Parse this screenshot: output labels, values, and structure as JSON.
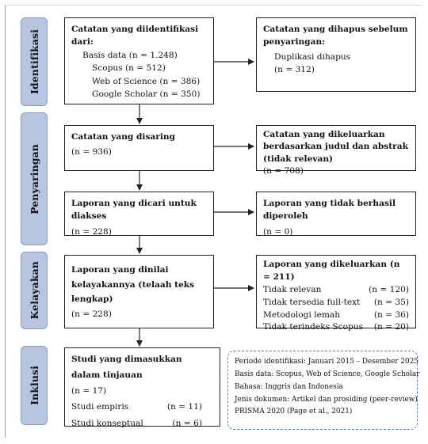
{
  "phases": {
    "identifikasi": "Identifikasi",
    "penyaringan": "Penyaringan",
    "kelayakan": "Kelayakan",
    "inklusi": "Inklusi"
  },
  "identified": {
    "title": "Catatan yang diidentifikasi dari:",
    "db_total": "Basis data (n = 1.248)",
    "scopus": "Scopus (n = 512)",
    "wos": "Web of Science (n = 386)",
    "gs": "Google Scholar (n = 350)"
  },
  "removed": {
    "title": "Catatan yang dihapus sebelum penyaringan:",
    "dup_label": "Duplikasi dihapus",
    "dup_n": "(n = 312)"
  },
  "screened": {
    "title": "Catatan yang disaring",
    "n": "(n = 936)"
  },
  "excluded": {
    "title": "Catatan yang dikeluarkan berdasarkan judul dan abstrak (tidak relevan)",
    "n": "(n = 708)"
  },
  "sought": {
    "title": "Laporan yang dicari untuk diakses",
    "n": "(n = 228)"
  },
  "not_retrieved": {
    "title": "Laporan yang tidak berhasil diperoleh",
    "n": "(n = 0)"
  },
  "assessed": {
    "title": "Laporan yang dinilai kelayakannya (telaah teks lengkap)",
    "n": "(n = 228)"
  },
  "reports_excluded": {
    "title": "Laporan yang dikeluarkan (n = 211)",
    "reasons": [
      {
        "label": "Tidak relevan",
        "n": "(n = 120)"
      },
      {
        "label": "Tidak tersedia full-text",
        "n": "(n = 35)"
      },
      {
        "label": "Metodologi lemah",
        "n": "(n = 36)"
      },
      {
        "label": "Tidak terindeks Scopus",
        "n": "(n = 20)"
      }
    ]
  },
  "included": {
    "title": "Studi yang dimasukkan dalam tinjauan",
    "n": "(n = 17)",
    "types": [
      {
        "label": "Studi empiris",
        "n": "(n = 11)"
      },
      {
        "label": "Studi konseptual",
        "n": "(n = 6)"
      }
    ]
  },
  "note": {
    "lines": [
      "Periode identifikasi: Januari 2015 – Desember 2025",
      "Basis data: Scopus, Web of Science, Google Scholar",
      "Bahasa: Inggris dan Indonesia",
      "Jenis dokumen: Artikel dan prosiding (peer-review)",
      "PRISMA 2020 (Page et al., 2021)"
    ]
  },
  "colors": {
    "phase_fill": "#b7c5df",
    "phase_border": "#8b9cbf",
    "note_border": "#5b79b8",
    "line": "#222222"
  }
}
